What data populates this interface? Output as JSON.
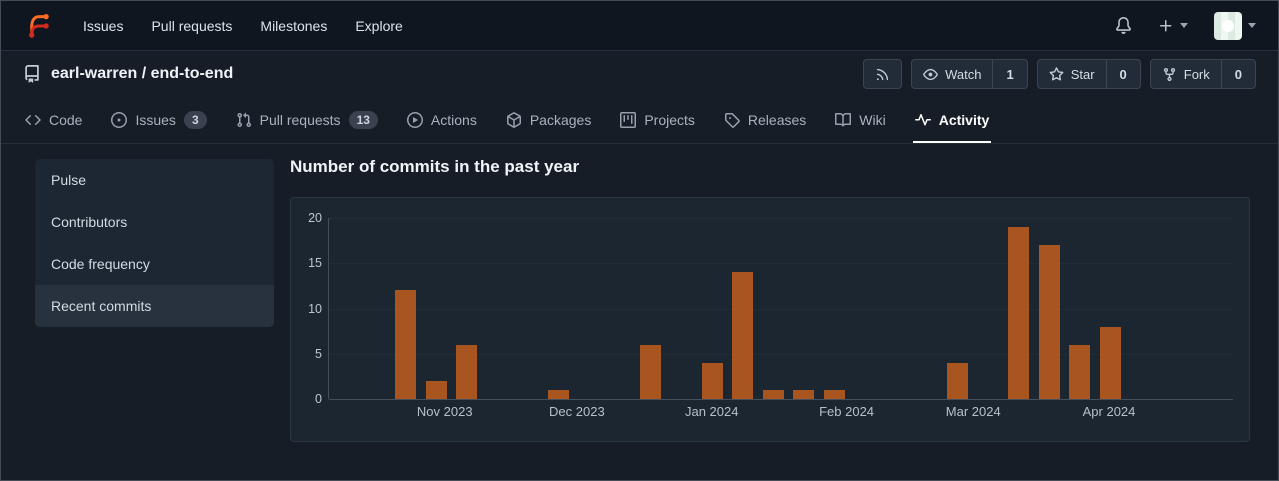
{
  "colors": {
    "bar_orange": "#a85520",
    "logo_orange": "#ff6b22",
    "logo_red": "#d42b20",
    "active_tab_underline": "#ffffff"
  },
  "navbar": {
    "logo_icon": "forgejo-logo",
    "links": [
      {
        "label": "Issues"
      },
      {
        "label": "Pull requests"
      },
      {
        "label": "Milestones"
      },
      {
        "label": "Explore"
      }
    ],
    "right": {
      "notifications_icon": "bell-icon",
      "create_icon": "plus-icon",
      "user_menu_icon": "avatar"
    }
  },
  "repo_header": {
    "repo_icon": "repo-icon",
    "title": "earl-warren / end-to-end",
    "actions": {
      "rss": {
        "icon": "rss-icon"
      },
      "watch": {
        "icon": "eye-icon",
        "label": "Watch",
        "count": "1"
      },
      "star": {
        "icon": "star-icon",
        "label": "Star",
        "count": "0"
      },
      "fork": {
        "icon": "fork-icon",
        "label": "Fork",
        "count": "0"
      }
    }
  },
  "tabs": [
    {
      "label": "Code",
      "icon": "code-icon"
    },
    {
      "label": "Issues",
      "icon": "issue-icon",
      "badge": "3"
    },
    {
      "label": "Pull requests",
      "icon": "pull-request-icon",
      "badge": "13"
    },
    {
      "label": "Actions",
      "icon": "play-circle-icon"
    },
    {
      "label": "Packages",
      "icon": "package-icon"
    },
    {
      "label": "Projects",
      "icon": "project-icon"
    },
    {
      "label": "Releases",
      "icon": "tag-icon"
    },
    {
      "label": "Wiki",
      "icon": "book-icon"
    },
    {
      "label": "Activity",
      "icon": "pulse-icon",
      "active": true
    }
  ],
  "sidebar": [
    {
      "label": "Pulse"
    },
    {
      "label": "Contributors"
    },
    {
      "label": "Code frequency"
    },
    {
      "label": "Recent commits",
      "active": true
    }
  ],
  "chart_data": {
    "type": "bar",
    "title": "Number of commits in the past year",
    "x_unit": "week",
    "weeks_values": [
      0,
      0,
      12,
      2,
      6,
      0,
      0,
      1,
      0,
      0,
      6,
      0,
      4,
      14,
      1,
      1,
      1,
      0,
      0,
      0,
      4,
      0,
      19,
      17,
      6,
      8,
      0,
      0,
      0,
      0
    ],
    "x_tick_labels": [
      "Nov 2023",
      "Dec 2023",
      "Jan 2024",
      "Feb 2024",
      "Mar 2024",
      "Apr 2024"
    ],
    "x_tick_pos_pct": [
      12.9,
      27.5,
      42.4,
      57.3,
      71.3,
      86.3
    ],
    "yticks": [
      0,
      5,
      10,
      15,
      20
    ],
    "ylim": [
      0,
      20
    ],
    "bar_color": "#a85520",
    "grid": true,
    "legend": "none"
  }
}
